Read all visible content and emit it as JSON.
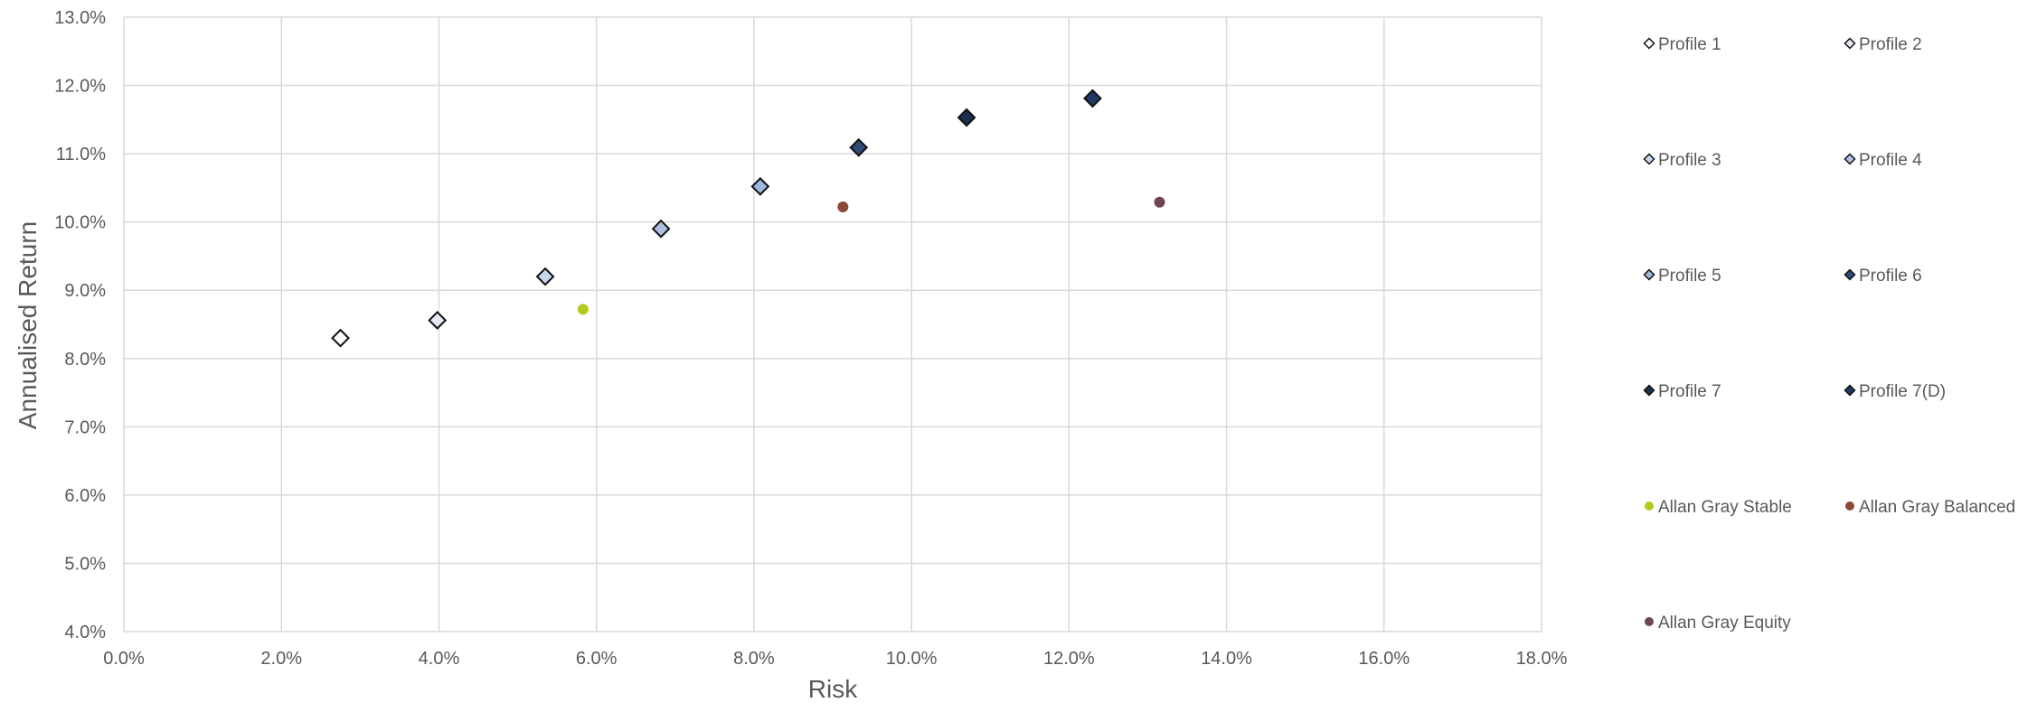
{
  "chart_data": {
    "type": "scatter",
    "xlabel": "Risk",
    "ylabel": "Annualised Return",
    "xlim": [
      0,
      18
    ],
    "ylim": [
      4,
      13
    ],
    "x_ticks": [
      "0.0%",
      "2.0%",
      "4.0%",
      "6.0%",
      "8.0%",
      "10.0%",
      "12.0%",
      "14.0%",
      "16.0%",
      "18.0%"
    ],
    "y_ticks": [
      "4.0%",
      "5.0%",
      "6.0%",
      "7.0%",
      "8.0%",
      "9.0%",
      "10.0%",
      "11.0%",
      "12.0%",
      "13.0%"
    ],
    "grid": true,
    "legend_position": "right",
    "series": [
      {
        "name": "Profile 1",
        "marker": "diamond",
        "color": "#FFFFFF",
        "x": 2.75,
        "y": 8.3
      },
      {
        "name": "Profile 2",
        "marker": "diamond",
        "color": "#E3E9F5",
        "x": 3.98,
        "y": 8.56
      },
      {
        "name": "Profile 3",
        "marker": "diamond",
        "color": "#C9D7EE",
        "x": 5.35,
        "y": 9.2
      },
      {
        "name": "Profile 4",
        "marker": "diamond",
        "color": "#AFC0E2",
        "x": 6.82,
        "y": 9.9
      },
      {
        "name": "Profile 5",
        "marker": "diamond",
        "color": "#9FB6DE",
        "x": 8.08,
        "y": 10.52
      },
      {
        "name": "Profile 6",
        "marker": "diamond",
        "color": "#2F4A76",
        "x": 9.33,
        "y": 11.09
      },
      {
        "name": "Profile 7",
        "marker": "diamond",
        "color": "#1B2F4F",
        "x": 10.7,
        "y": 11.53
      },
      {
        "name": "Profile 7(D)",
        "marker": "diamond",
        "color": "#1F3864",
        "x": 12.3,
        "y": 11.81
      },
      {
        "name": "Allan Gray Stable",
        "marker": "circle",
        "color": "#B5C91C",
        "x": 5.83,
        "y": 8.72
      },
      {
        "name": "Allan Gray Balanced",
        "marker": "circle",
        "color": "#8A4A36",
        "x": 9.13,
        "y": 10.22
      },
      {
        "name": "Allan Gray Equity",
        "marker": "circle",
        "color": "#6E4557",
        "x": 13.15,
        "y": 10.29
      }
    ]
  }
}
